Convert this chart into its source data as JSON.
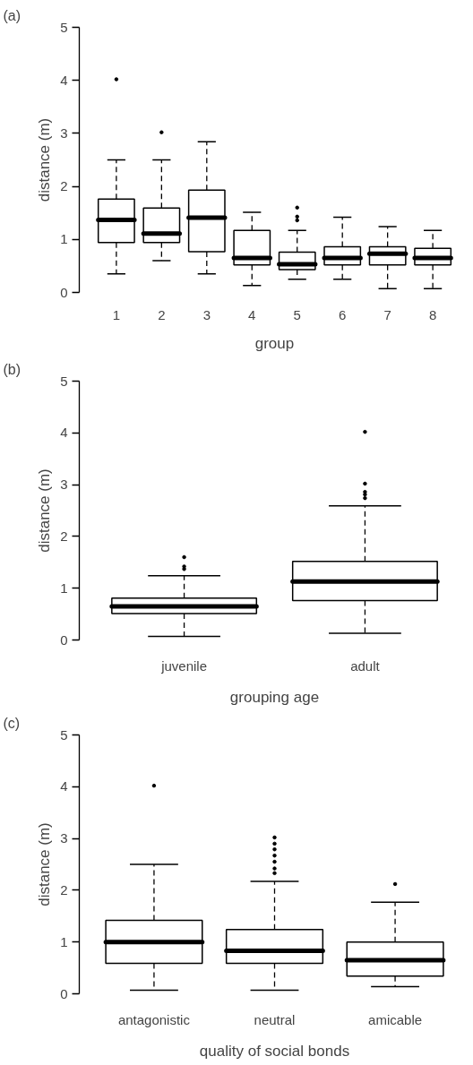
{
  "chart_data": [
    {
      "type": "box",
      "title": "(a)",
      "xlabel": "group",
      "ylabel": "distance (m)",
      "categories": [
        "1",
        "2",
        "3",
        "4",
        "5",
        "6",
        "7",
        "8"
      ],
      "ylim": [
        0,
        5
      ],
      "yticks": [
        0,
        1,
        2,
        3,
        4,
        5
      ],
      "boxes": [
        {
          "low": 0.35,
          "q1": 0.94,
          "median": 1.37,
          "q3": 1.76,
          "high": 2.5,
          "outliers": [
            4.02
          ]
        },
        {
          "low": 0.6,
          "q1": 0.94,
          "median": 1.11,
          "q3": 1.59,
          "high": 2.5,
          "outliers": [
            3.02
          ]
        },
        {
          "low": 0.35,
          "q1": 0.77,
          "median": 1.41,
          "q3": 1.93,
          "high": 2.84
        },
        {
          "low": 0.13,
          "q1": 0.52,
          "median": 0.65,
          "q3": 1.17,
          "high": 1.51
        },
        {
          "low": 0.25,
          "q1": 0.43,
          "median": 0.53,
          "q3": 0.76,
          "high": 1.17,
          "outliers": [
            1.36,
            1.43,
            1.6
          ]
        },
        {
          "low": 0.25,
          "q1": 0.52,
          "median": 0.65,
          "q3": 0.86,
          "high": 1.42
        },
        {
          "low": 0.07,
          "q1": 0.52,
          "median": 0.73,
          "q3": 0.86,
          "high": 1.24
        },
        {
          "low": 0.07,
          "q1": 0.52,
          "median": 0.65,
          "q3": 0.83,
          "high": 1.17
        }
      ]
    },
    {
      "type": "box",
      "title": "(b)",
      "xlabel": "grouping age",
      "ylabel": "distance (m)",
      "categories": [
        "juvenile",
        "adult"
      ],
      "ylim": [
        0,
        5
      ],
      "yticks": [
        0,
        1,
        2,
        3,
        4,
        5
      ],
      "boxes": [
        {
          "low": 0.07,
          "q1": 0.51,
          "median": 0.65,
          "q3": 0.81,
          "high": 1.24,
          "outliers": [
            1.37,
            1.42,
            1.6
          ]
        },
        {
          "low": 0.13,
          "q1": 0.76,
          "median": 1.13,
          "q3": 1.52,
          "high": 2.59,
          "outliers": [
            2.74,
            2.81,
            2.86,
            3.02,
            4.02
          ]
        }
      ]
    },
    {
      "type": "box",
      "title": "(c)",
      "xlabel": "quality of social bonds",
      "ylabel": "distance (m)",
      "categories": [
        "antagonistic",
        "neutral",
        "amicable"
      ],
      "ylim": [
        0,
        5
      ],
      "yticks": [
        0,
        1,
        2,
        3,
        4,
        5
      ],
      "boxes": [
        {
          "low": 0.07,
          "q1": 0.59,
          "median": 1.0,
          "q3": 1.42,
          "high": 2.5,
          "outliers": [
            4.02
          ]
        },
        {
          "low": 0.07,
          "q1": 0.59,
          "median": 0.83,
          "q3": 1.24,
          "high": 2.17,
          "outliers": [
            2.33,
            2.42,
            2.55,
            2.67,
            2.79,
            2.9,
            3.02
          ]
        },
        {
          "low": 0.14,
          "q1": 0.34,
          "median": 0.65,
          "q3": 1.0,
          "high": 1.77,
          "outliers": [
            2.12
          ]
        }
      ]
    }
  ]
}
